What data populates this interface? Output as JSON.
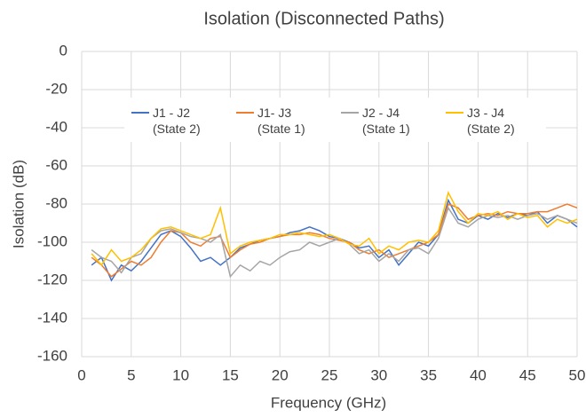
{
  "chart_data": {
    "type": "line",
    "title": "Isolation (Disconnected Paths)",
    "xlabel": "Frequency (GHz)",
    "ylabel": "Isolation (dB)",
    "x": [
      1,
      2,
      3,
      4,
      5,
      6,
      7,
      8,
      9,
      10,
      11,
      12,
      13,
      14,
      15,
      16,
      17,
      18,
      19,
      20,
      21,
      22,
      23,
      24,
      25,
      26,
      27,
      28,
      29,
      30,
      31,
      32,
      33,
      34,
      35,
      36,
      37,
      38,
      39,
      40,
      41,
      42,
      43,
      44,
      45,
      46,
      47,
      48,
      49,
      50
    ],
    "series": [
      {
        "name": "J1 - J2\n(State 2)",
        "color": "#4472c4",
        "values": [
          -112,
          -108,
          -120,
          -112,
          -115,
          -110,
          -103,
          -96,
          -94,
          -97,
          -103,
          -110,
          -108,
          -112,
          -108,
          -103,
          -101,
          -99,
          -98,
          -97,
          -95,
          -94,
          -92,
          -94,
          -97,
          -98,
          -100,
          -103,
          -102,
          -108,
          -104,
          -112,
          -106,
          -100,
          -102,
          -96,
          -78,
          -88,
          -90,
          -86,
          -88,
          -85,
          -87,
          -85,
          -86,
          -84,
          -90,
          -86,
          -88,
          -92
        ]
      },
      {
        "name": "J1- J3\n(State 1)",
        "color": "#ed7d31",
        "values": [
          -108,
          -112,
          -118,
          -114,
          -110,
          -112,
          -108,
          -100,
          -94,
          -95,
          -100,
          -102,
          -98,
          -97,
          -108,
          -104,
          -101,
          -100,
          -98,
          -97,
          -96,
          -96,
          -95,
          -96,
          -98,
          -99,
          -100,
          -104,
          -106,
          -104,
          -108,
          -106,
          -104,
          -102,
          -100,
          -96,
          -80,
          -82,
          -88,
          -86,
          -85,
          -86,
          -84,
          -85,
          -85,
          -84,
          -84,
          -82,
          -80,
          -82
        ]
      },
      {
        "name": "J2 - J4\n(State 1)",
        "color": "#a5a5a5",
        "values": [
          -104,
          -108,
          -110,
          -116,
          -108,
          -106,
          -98,
          -94,
          -93,
          -95,
          -97,
          -98,
          -100,
          -96,
          -118,
          -112,
          -115,
          -110,
          -112,
          -108,
          -105,
          -104,
          -100,
          -102,
          -100,
          -98,
          -101,
          -106,
          -104,
          -110,
          -106,
          -110,
          -104,
          -103,
          -106,
          -98,
          -82,
          -90,
          -92,
          -88,
          -86,
          -87,
          -86,
          -88,
          -86,
          -85,
          -88,
          -86,
          -88,
          -90
        ]
      },
      {
        "name": "J3 - J4\n(State 2)",
        "color": "#ffc000",
        "values": [
          -106,
          -112,
          -104,
          -110,
          -108,
          -104,
          -98,
          -93,
          -92,
          -94,
          -96,
          -98,
          -96,
          -82,
          -106,
          -102,
          -100,
          -99,
          -98,
          -96,
          -96,
          -95,
          -96,
          -97,
          -96,
          -98,
          -101,
          -102,
          -98,
          -106,
          -102,
          -104,
          -100,
          -99,
          -100,
          -94,
          -74,
          -84,
          -90,
          -85,
          -86,
          -84,
          -88,
          -85,
          -87,
          -86,
          -92,
          -88,
          -90,
          -88
        ]
      }
    ],
    "xlim": [
      0,
      50
    ],
    "xticks": [
      0,
      5,
      10,
      15,
      20,
      25,
      30,
      35,
      40,
      45,
      50
    ],
    "ylim": [
      -160,
      0
    ],
    "yticks": [
      -160,
      -140,
      -120,
      -100,
      -80,
      -60,
      -40,
      -20,
      0
    ],
    "grid": true
  }
}
